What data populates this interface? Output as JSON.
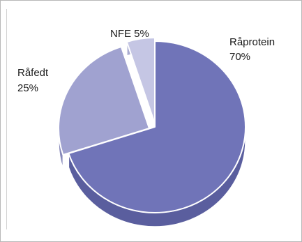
{
  "chart_data": {
    "type": "pie",
    "style": "3d-exploded",
    "slices": [
      {
        "label": "Råprotein",
        "value": 70,
        "value_label": "70%",
        "color": "#7074b8",
        "side_color": "#5a5e9e"
      },
      {
        "label": "Råfedt",
        "value": 25,
        "value_label": "25%",
        "color": "#a0a2d0",
        "side_color": "#8789ba"
      },
      {
        "label": "NFE",
        "value": 5,
        "value_label": "NFE 5%",
        "color": "#c5c6e4",
        "side_color": "#a9abd0"
      }
    ],
    "legend": "none",
    "title": ""
  }
}
